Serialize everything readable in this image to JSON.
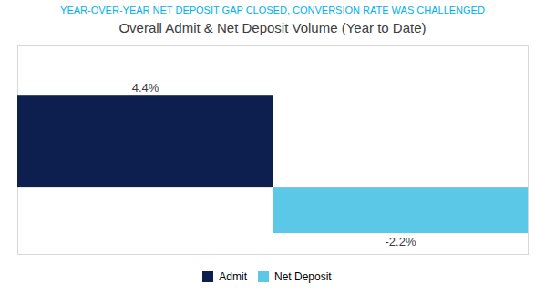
{
  "chart_data": {
    "type": "bar",
    "title": "YEAR-OVER-YEAR NET DEPOSIT GAP CLOSED, CONVERSION RATE WAS CHALLENGED",
    "subtitle": "Overall Admit & Net Deposit Volume (Year to Date)",
    "categories": [
      "Admit",
      "Net Deposit"
    ],
    "values": [
      4.4,
      -2.2
    ],
    "value_labels": [
      "4.4%",
      "-2.2%"
    ],
    "data_labels": true,
    "colors": [
      "#0d1f4e",
      "#5bc8e8"
    ],
    "ylim": [
      -3.2,
      6.8
    ],
    "tick_labels": false,
    "grid": false,
    "legend": "bottom"
  }
}
